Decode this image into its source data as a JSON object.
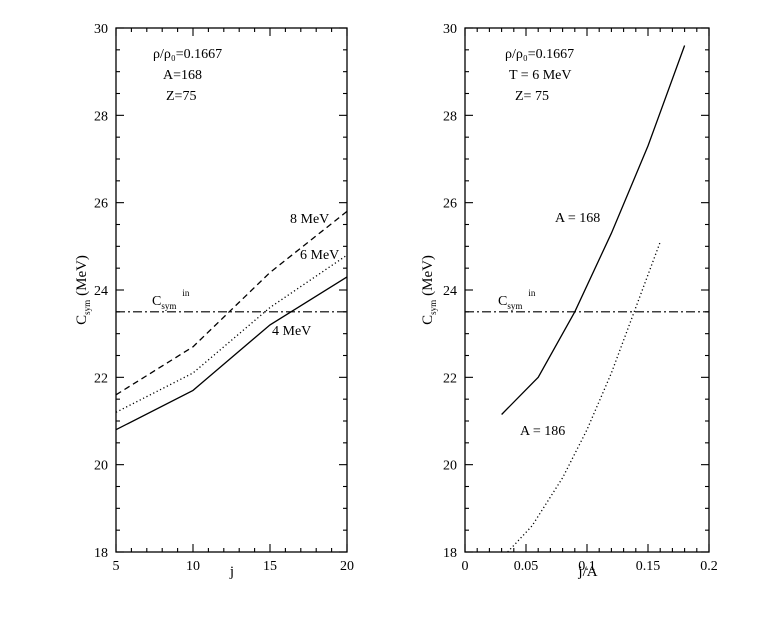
{
  "chart_data": [
    {
      "type": "line",
      "xlabel": "j",
      "ylabel_main": "C",
      "ylabel_sub": "sym",
      "ylabel_unit": "(MeV)",
      "xlim": [
        5,
        20
      ],
      "ylim": [
        18,
        30
      ],
      "xticks": [
        5,
        10,
        15,
        20
      ],
      "xtick_labels": [
        "5",
        "10",
        "15",
        "20"
      ],
      "yticks": [
        18,
        20,
        22,
        24,
        26,
        28,
        30
      ],
      "ytick_labels": [
        "18",
        "20",
        "22",
        "24",
        "26",
        "28",
        "30"
      ],
      "params": [
        "ρ/ρ₀=0.1667",
        "A=168",
        "Z=75"
      ],
      "series": [
        {
          "name": "4 MeV",
          "style": "solid",
          "x": [
            5,
            10,
            15,
            20
          ],
          "y": [
            20.8,
            21.7,
            23.2,
            24.3
          ]
        },
        {
          "name": "6 MeV",
          "style": "dotted",
          "x": [
            5,
            10,
            15,
            20
          ],
          "y": [
            21.2,
            22.1,
            23.6,
            24.8
          ]
        },
        {
          "name": "8 MeV",
          "style": "dashed",
          "x": [
            5,
            10,
            15,
            20
          ],
          "y": [
            21.6,
            22.7,
            24.4,
            25.8
          ]
        }
      ],
      "reference": {
        "label_main": "C",
        "label_sub": "sym",
        "label_sup": "in",
        "y": 23.5,
        "style": "dashdot"
      }
    },
    {
      "type": "line",
      "xlabel": "j/A",
      "ylabel_main": "C",
      "ylabel_sub": "sym",
      "ylabel_unit": "(MeV)",
      "xlim": [
        0,
        0.2
      ],
      "ylim": [
        18,
        30
      ],
      "xticks": [
        0,
        0.05,
        0.1,
        0.15,
        0.2
      ],
      "xtick_labels": [
        "0",
        "0.05",
        "0.1",
        "0.15",
        "0.2"
      ],
      "yticks": [
        18,
        20,
        22,
        24,
        26,
        28,
        30
      ],
      "ytick_labels": [
        "18",
        "20",
        "22",
        "24",
        "26",
        "28",
        "30"
      ],
      "params": [
        "ρ/ρ₀=0.1667",
        "T = 6 MeV",
        "Z= 75"
      ],
      "series": [
        {
          "name": "A = 168",
          "style": "solid",
          "x": [
            0.03,
            0.06,
            0.09,
            0.12,
            0.15,
            0.18
          ],
          "y": [
            21.15,
            22.0,
            23.5,
            25.3,
            27.3,
            29.6
          ]
        },
        {
          "name": "A = 186",
          "style": "dotted",
          "x": [
            0.035,
            0.055,
            0.08,
            0.1,
            0.12,
            0.14,
            0.16
          ],
          "y": [
            18.0,
            18.6,
            19.7,
            20.8,
            22.1,
            23.6,
            25.1
          ]
        }
      ],
      "reference": {
        "label_main": "C",
        "label_sub": "sym",
        "label_sup": "in",
        "y": 23.5,
        "style": "dashdot"
      }
    }
  ]
}
